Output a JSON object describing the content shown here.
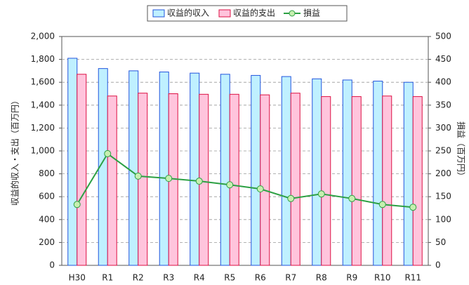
{
  "chart_data": {
    "type": "bar_line",
    "categories": [
      "H30",
      "R1",
      "R2",
      "R3",
      "R4",
      "R5",
      "R6",
      "R7",
      "R8",
      "R9",
      "R10",
      "R11"
    ],
    "series": [
      {
        "name": "収益的収入",
        "color": "#bff0ff",
        "edge": "#2255dd",
        "type": "bar",
        "values": [
          1810,
          1720,
          1700,
          1690,
          1680,
          1670,
          1660,
          1650,
          1630,
          1620,
          1610,
          1600
        ]
      },
      {
        "name": "収益的支出",
        "color": "#ffc4dc",
        "edge": "#dd1144",
        "type": "bar",
        "values": [
          1670,
          1480,
          1505,
          1500,
          1495,
          1495,
          1490,
          1505,
          1475,
          1475,
          1480,
          1475
        ]
      },
      {
        "name": "損益",
        "color": "#2ca043",
        "marker": "#c6efb0",
        "type": "line",
        "axis": "y2",
        "values": [
          133,
          244,
          195,
          190,
          184,
          176,
          167,
          146,
          156,
          146,
          133,
          127
        ]
      }
    ],
    "ylabel": "収益的収入・支出（百万円）",
    "y2label": "損益（百万円）",
    "ylim": [
      0,
      2000
    ],
    "yticks": [
      0,
      200,
      400,
      600,
      800,
      {
        "value": 1000,
        "label": "1,000"
      },
      {
        "value": 1200,
        "label": "1,200"
      },
      {
        "value": 1400,
        "label": "1,400"
      },
      {
        "value": 1600,
        "label": "1,600"
      },
      {
        "value": 1800,
        "label": "1,800"
      },
      {
        "value": 2000,
        "label": "2,000"
      }
    ],
    "y2lim": [
      0,
      500
    ],
    "y2ticks": [
      0,
      50,
      100,
      150,
      200,
      250,
      300,
      350,
      400,
      450,
      500
    ],
    "grid": true,
    "legend": "top"
  }
}
